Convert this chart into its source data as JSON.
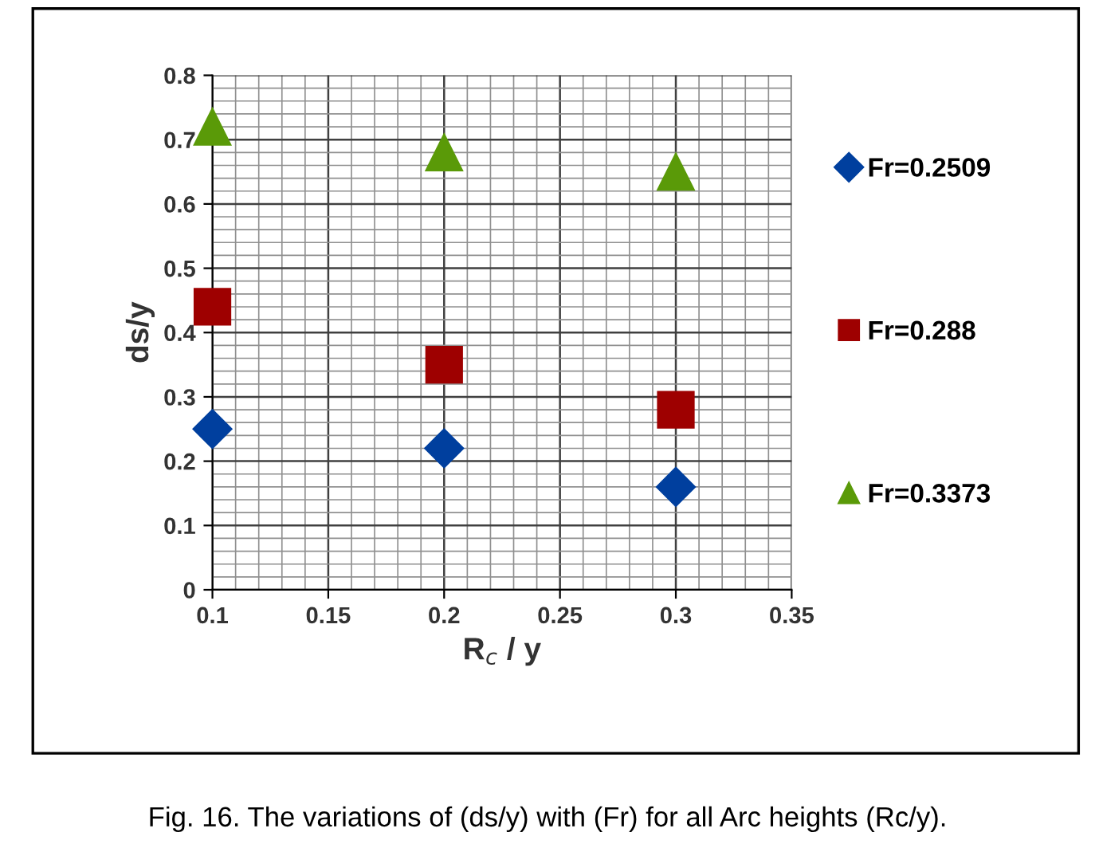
{
  "chart_data": {
    "type": "scatter",
    "xlabel": "R$_{c}$ / y",
    "ylabel": "ds/y",
    "x": [
      0.1,
      0.2,
      0.3
    ],
    "series": [
      {
        "name": "Fr=0.2509",
        "color": "#003f9e",
        "marker": "diamond",
        "values": [
          0.25,
          0.22,
          0.16
        ]
      },
      {
        "name": "Fr=0.288",
        "color": "#9e0000",
        "marker": "square",
        "values": [
          0.44,
          0.35,
          0.28
        ]
      },
      {
        "name": "Fr=0.3373",
        "color": "#5a9a08",
        "marker": "triangle",
        "values": [
          0.72,
          0.68,
          0.65
        ]
      }
    ],
    "xlim": [
      0.1,
      0.35
    ],
    "xticks": [
      0.1,
      0.15,
      0.2,
      0.25,
      0.3,
      0.35
    ],
    "ylim": [
      0,
      0.8
    ],
    "yticks": [
      0,
      0.1,
      0.2,
      0.3,
      0.4,
      0.5,
      0.6,
      0.7,
      0.8
    ],
    "grid": true,
    "legend": "right",
    "annotations": [
      "Fig. 16. The variations of (ds/y) with (Fr) for all Arc heights (Rc/y)."
    ]
  }
}
